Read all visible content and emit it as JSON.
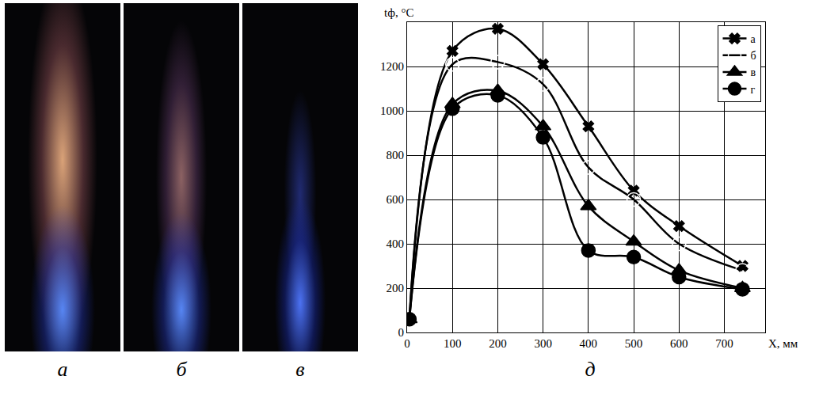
{
  "panels": [
    {
      "label": "а"
    },
    {
      "label": "б"
    },
    {
      "label": "в"
    }
  ],
  "chart_data": {
    "type": "line",
    "panel_label": "д",
    "y_label": "tф, °C",
    "x_label": "X, мм",
    "x": [
      5,
      100,
      200,
      300,
      400,
      500,
      600,
      740
    ],
    "series": [
      {
        "name": "а",
        "marker": "x",
        "color": "#000000",
        "values": [
          60,
          1270,
          1370,
          1210,
          930,
          640,
          480,
          300
        ]
      },
      {
        "name": "б",
        "marker": "circle-open",
        "color": "#000000",
        "values": [
          60,
          1210,
          1220,
          1120,
          745,
          600,
          400,
          280
        ]
      },
      {
        "name": "в",
        "marker": "triangle-up",
        "color": "#000000",
        "values": [
          60,
          1030,
          1090,
          930,
          570,
          410,
          280,
          200
        ]
      },
      {
        "name": "г",
        "marker": "circle",
        "color": "#000000",
        "values": [
          60,
          1010,
          1070,
          880,
          370,
          340,
          250,
          195
        ]
      }
    ],
    "xlim": [
      0,
      790
    ],
    "xticks": [
      0,
      100,
      200,
      300,
      400,
      500,
      600,
      700
    ],
    "ylim": [
      0,
      1400
    ],
    "yticks": [
      0,
      200,
      400,
      600,
      800,
      1000,
      1200
    ],
    "grid": true,
    "legend": "top-right"
  }
}
